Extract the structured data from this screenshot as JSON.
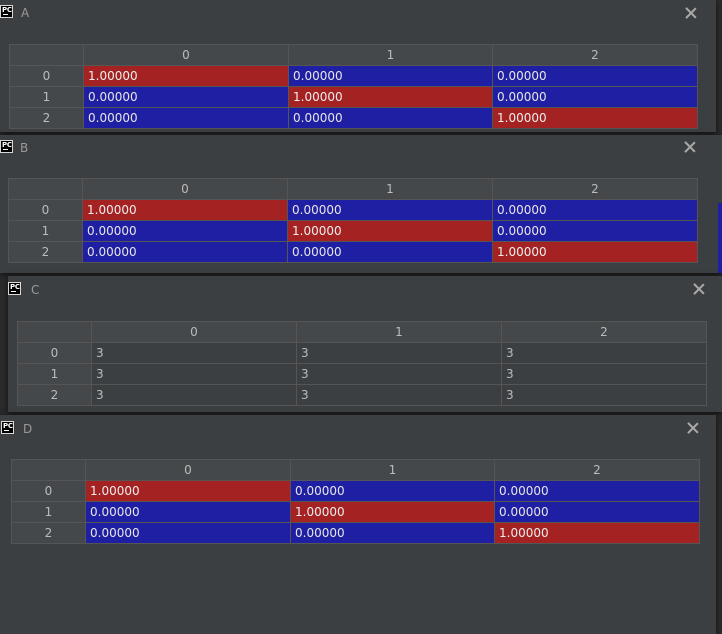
{
  "windows": [
    {
      "id": "A",
      "title": "A",
      "icon": "pycharm-icon",
      "icon_text": "PC",
      "columns": [
        "0",
        "1",
        "2"
      ],
      "rows": [
        {
          "label": "0",
          "cells": [
            "1.00000",
            "0.00000",
            "0.00000"
          ],
          "colors": [
            "red",
            "blue",
            "blue"
          ]
        },
        {
          "label": "1",
          "cells": [
            "0.00000",
            "1.00000",
            "0.00000"
          ],
          "colors": [
            "blue",
            "red",
            "blue"
          ]
        },
        {
          "label": "2",
          "cells": [
            "0.00000",
            "0.00000",
            "1.00000"
          ],
          "colors": [
            "blue",
            "blue",
            "red"
          ]
        }
      ]
    },
    {
      "id": "B",
      "title": "B",
      "icon": "pycharm-icon",
      "icon_text": "PC",
      "columns": [
        "0",
        "1",
        "2"
      ],
      "rows": [
        {
          "label": "0",
          "cells": [
            "1.00000",
            "0.00000",
            "0.00000"
          ],
          "colors": [
            "red",
            "blue",
            "blue"
          ]
        },
        {
          "label": "1",
          "cells": [
            "0.00000",
            "1.00000",
            "0.00000"
          ],
          "colors": [
            "blue",
            "red",
            "blue"
          ]
        },
        {
          "label": "2",
          "cells": [
            "0.00000",
            "0.00000",
            "1.00000"
          ],
          "colors": [
            "blue",
            "blue",
            "red"
          ]
        }
      ]
    },
    {
      "id": "C",
      "title": "C",
      "icon": "pycharm-icon",
      "icon_text": "PC",
      "columns": [
        "0",
        "1",
        "2"
      ],
      "rows": [
        {
          "label": "0",
          "cells": [
            "3",
            "3",
            "3"
          ],
          "colors": [
            "plain",
            "plain",
            "plain"
          ]
        },
        {
          "label": "1",
          "cells": [
            "3",
            "3",
            "3"
          ],
          "colors": [
            "plain",
            "plain",
            "plain"
          ]
        },
        {
          "label": "2",
          "cells": [
            "3",
            "3",
            "3"
          ],
          "colors": [
            "plain",
            "plain",
            "plain"
          ]
        }
      ]
    },
    {
      "id": "D",
      "title": "D",
      "icon": "pycharm-icon",
      "icon_text": "PC",
      "columns": [
        "0",
        "1",
        "2"
      ],
      "rows": [
        {
          "label": "0",
          "cells": [
            "1.00000",
            "0.00000",
            "0.00000"
          ],
          "colors": [
            "red",
            "blue",
            "blue"
          ]
        },
        {
          "label": "1",
          "cells": [
            "0.00000",
            "1.00000",
            "0.00000"
          ],
          "colors": [
            "blue",
            "red",
            "blue"
          ]
        },
        {
          "label": "2",
          "cells": [
            "0.00000",
            "0.00000",
            "1.00000"
          ],
          "colors": [
            "blue",
            "blue",
            "red"
          ]
        }
      ]
    }
  ],
  "colors": {
    "high_value": "#a52222",
    "low_value": "#1f1fa3",
    "background": "#3c3f41",
    "header": "#45484a"
  }
}
